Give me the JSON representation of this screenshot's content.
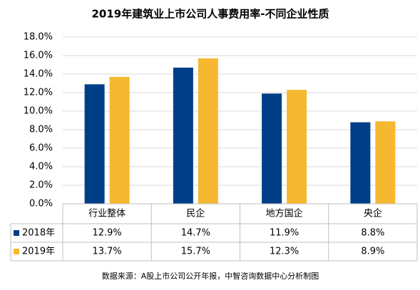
{
  "chart_data": {
    "type": "bar",
    "title": "2019年建筑业上市公司人事费用率-不同企业性质",
    "source": "数据来源：A股上市公司公开年报，中智咨询数据中心分析制图",
    "categories": [
      "行业整体",
      "民企",
      "地方国企",
      "央企"
    ],
    "series": [
      {
        "name": "2018年",
        "color": "#003f87",
        "values": [
          12.9,
          14.7,
          11.9,
          8.8
        ],
        "value_labels": [
          "12.9%",
          "14.7%",
          "11.9%",
          "8.8%"
        ]
      },
      {
        "name": "2019年",
        "color": "#f6b830",
        "values": [
          13.7,
          15.7,
          12.3,
          8.9
        ],
        "value_labels": [
          "13.7%",
          "15.7%",
          "12.3%",
          "8.9%"
        ]
      }
    ],
    "ylim": [
      0,
      18
    ],
    "yticks": [
      {
        "value": 0,
        "label": "0.0%"
      },
      {
        "value": 2,
        "label": "2.0%"
      },
      {
        "value": 4,
        "label": "4.0%"
      },
      {
        "value": 6,
        "label": "6.0%"
      },
      {
        "value": 8,
        "label": "8.0%"
      },
      {
        "value": 10,
        "label": "10.0%"
      },
      {
        "value": 12,
        "label": "12.0%"
      },
      {
        "value": 14,
        "label": "14.0%"
      },
      {
        "value": 16,
        "label": "16.0%"
      },
      {
        "value": 18,
        "label": "18.0%"
      }
    ],
    "grid": true
  }
}
